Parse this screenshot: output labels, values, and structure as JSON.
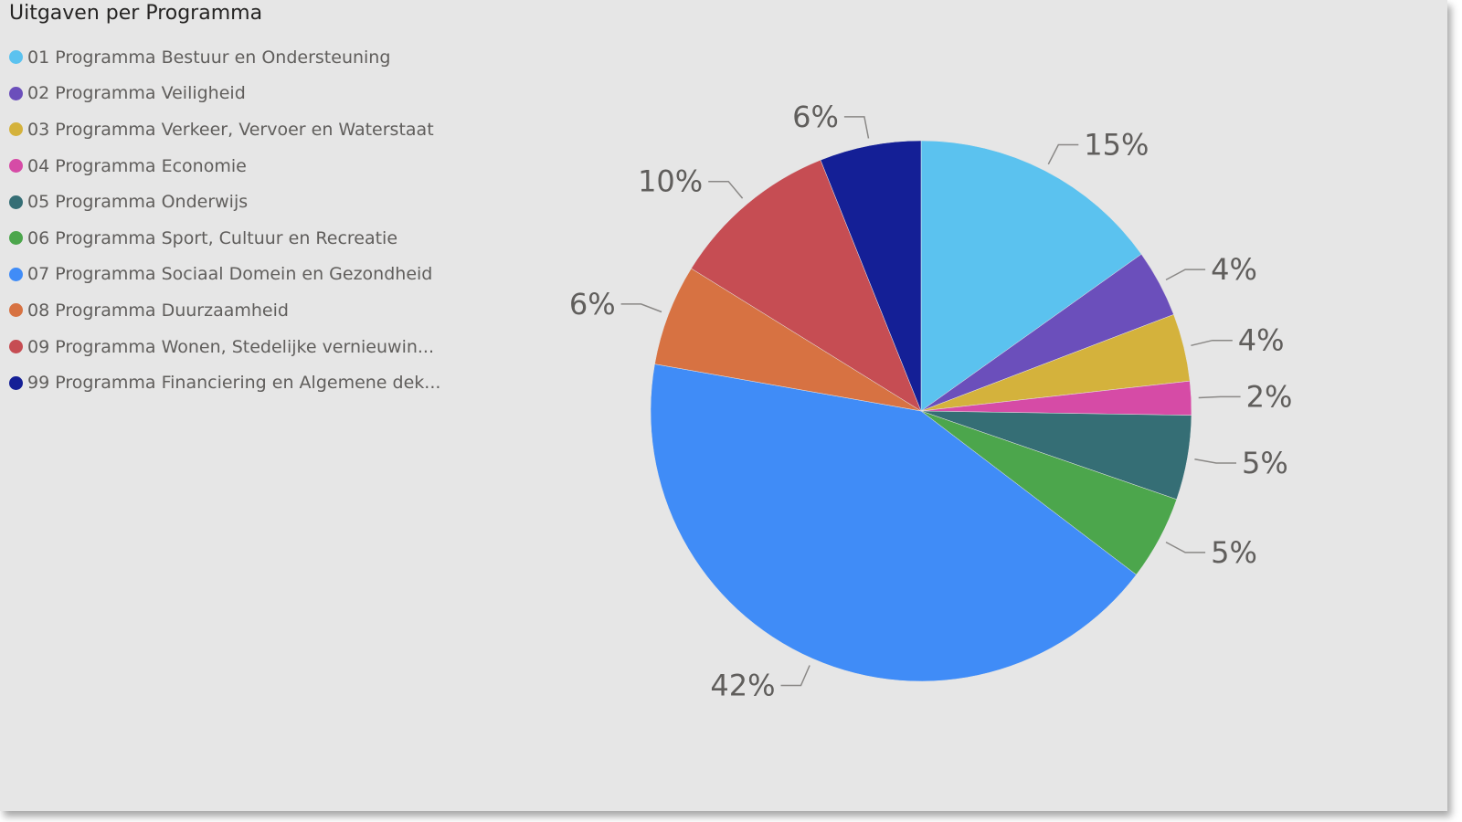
{
  "chart_data": {
    "type": "pie",
    "title": "Uitgaven per Programma",
    "legend_position": "top-left",
    "slices": [
      {
        "label": "01 Programma Bestuur en Ondersteuning",
        "value": 15,
        "display": "15%",
        "color": "#5bc2ef"
      },
      {
        "label": "02 Programma Veiligheid",
        "value": 4,
        "display": "4%",
        "color": "#6b4fbb"
      },
      {
        "label": "03 Programma Verkeer, Vervoer en Waterstaat",
        "value": 4,
        "display": "4%",
        "color": "#d4b23c"
      },
      {
        "label": "04 Programma Economie",
        "value": 2,
        "display": "2%",
        "color": "#d64ba6"
      },
      {
        "label": "05 Programma Onderwijs",
        "value": 5,
        "display": "5%",
        "color": "#356e75"
      },
      {
        "label": "06 Programma Sport, Cultuur en Recreatie",
        "value": 5,
        "display": "5%",
        "color": "#4ca64c"
      },
      {
        "label": "07 Programma Sociaal Domein en Gezondheid",
        "value": 42,
        "display": "42%",
        "color": "#408cf7"
      },
      {
        "label": "08 Programma Duurzaamheid",
        "value": 6,
        "display": "6%",
        "color": "#d77242"
      },
      {
        "label": "09 Programma Wonen, Stedelijke vernieuwin...",
        "value": 10,
        "display": "10%",
        "color": "#c64d53"
      },
      {
        "label": "99 Programma Financiering en Algemene dek...",
        "value": 6,
        "display": "6%",
        "color": "#141f96"
      }
    ]
  }
}
